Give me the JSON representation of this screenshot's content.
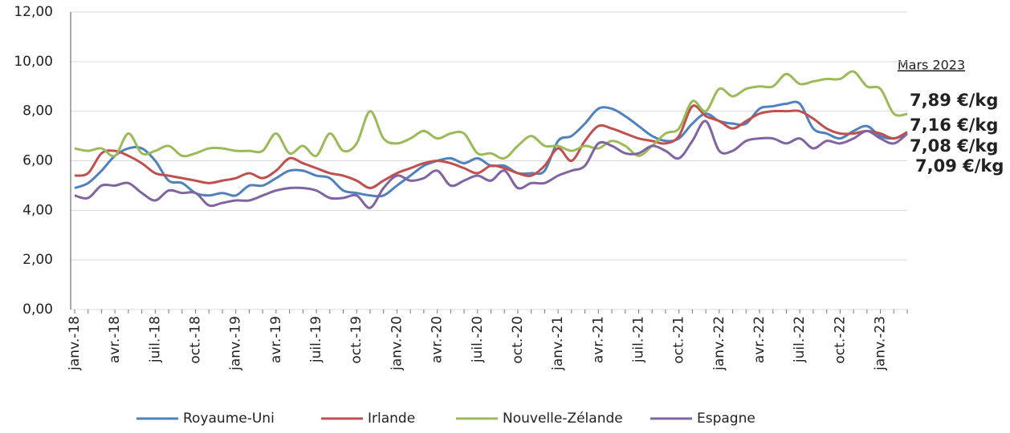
{
  "chart_data": {
    "type": "line",
    "categories": [
      "janv.-18",
      null,
      null,
      "avr.-18",
      null,
      null,
      "juil.-18",
      null,
      null,
      "oct.-18",
      null,
      null,
      "janv.-19",
      null,
      null,
      "avr.-19",
      null,
      null,
      "juil.-19",
      null,
      null,
      "oct.-19",
      null,
      null,
      "janv.-20",
      null,
      null,
      "avr.-20",
      null,
      null,
      "juil.-20",
      null,
      null,
      "oct.-20",
      null,
      null,
      "janv.-21",
      null,
      null,
      "avr.-21",
      null,
      null,
      "juil.-21",
      null,
      null,
      "oct.-21",
      null,
      null,
      "janv.-22",
      null,
      null,
      "avr.-22",
      null,
      null,
      "juil.-22",
      null,
      null,
      "oct.-22",
      null,
      null,
      "janv.-23",
      null,
      null
    ],
    "annotation": "Mars 2023",
    "ylim": [
      0,
      12
    ],
    "yticks": [
      {
        "value": 0,
        "label": "0,00"
      },
      {
        "value": 2,
        "label": "2,00"
      },
      {
        "value": 4,
        "label": "4,00"
      },
      {
        "value": 6,
        "label": "6,00"
      },
      {
        "value": 8,
        "label": "8,00"
      },
      {
        "value": 10,
        "label": "10,00"
      },
      {
        "value": 12,
        "label": "12,00"
      }
    ],
    "grid": true,
    "legend": "bottom",
    "series": [
      {
        "name": "Royaume-Uni",
        "color": "#4f81bd",
        "label_color": "#1f72c0",
        "values": [
          4.9,
          5.1,
          5.6,
          6.2,
          6.5,
          6.5,
          6.0,
          5.2,
          5.1,
          4.7,
          4.6,
          4.7,
          4.6,
          5.0,
          5.0,
          5.3,
          5.6,
          5.6,
          5.4,
          5.3,
          4.8,
          4.7,
          4.6,
          4.6,
          5.0,
          5.4,
          5.8,
          6.0,
          6.1,
          5.9,
          6.1,
          5.8,
          5.8,
          5.5,
          5.5,
          5.6,
          6.8,
          7.0,
          7.5,
          8.1,
          8.1,
          7.8,
          7.4,
          7.0,
          6.8,
          6.9,
          7.5,
          7.9,
          7.6,
          7.5,
          7.5,
          8.1,
          8.2,
          8.3,
          8.3,
          7.3,
          7.1,
          6.9,
          7.2,
          7.4,
          7.0,
          6.9,
          7.08
        ],
        "value_labels": [
          null,
          null,
          null,
          null,
          null,
          null,
          null,
          null,
          null,
          null,
          null,
          null,
          null,
          null,
          null,
          null,
          null,
          null,
          null,
          null,
          null,
          null,
          null,
          null,
          null,
          null,
          null,
          null,
          null,
          null,
          null,
          null,
          null,
          null,
          null,
          null,
          null,
          null,
          null,
          null,
          null,
          null,
          null,
          null,
          null,
          null,
          null,
          null,
          null,
          null,
          null,
          null,
          null,
          null,
          null,
          null,
          null,
          null,
          null,
          null,
          null,
          null,
          "7,08 €/kg"
        ]
      },
      {
        "name": "Irlande",
        "color": "#c0504d",
        "label_color": "#c0392b",
        "values": [
          5.4,
          5.5,
          6.3,
          6.4,
          6.2,
          5.9,
          5.5,
          5.4,
          5.3,
          5.2,
          5.1,
          5.2,
          5.3,
          5.5,
          5.3,
          5.6,
          6.1,
          5.9,
          5.7,
          5.5,
          5.4,
          5.2,
          4.9,
          5.2,
          5.5,
          5.7,
          5.9,
          6.0,
          5.9,
          5.7,
          5.5,
          5.8,
          5.7,
          5.5,
          5.4,
          5.8,
          6.5,
          6.0,
          6.8,
          7.4,
          7.3,
          7.1,
          6.9,
          6.8,
          6.7,
          7.0,
          8.2,
          7.8,
          7.6,
          7.3,
          7.6,
          7.9,
          8.0,
          8.0,
          8.0,
          7.7,
          7.3,
          7.1,
          7.1,
          7.2,
          7.1,
          6.9,
          7.16
        ],
        "value_labels": [
          null,
          null,
          null,
          null,
          null,
          null,
          null,
          null,
          null,
          null,
          null,
          null,
          null,
          null,
          null,
          null,
          null,
          null,
          null,
          null,
          null,
          null,
          null,
          null,
          null,
          null,
          null,
          null,
          null,
          null,
          null,
          null,
          null,
          null,
          null,
          null,
          null,
          null,
          null,
          null,
          null,
          null,
          null,
          null,
          null,
          null,
          null,
          null,
          null,
          null,
          null,
          null,
          null,
          null,
          null,
          null,
          null,
          null,
          null,
          null,
          null,
          null,
          "7,16 €/kg"
        ]
      },
      {
        "name": "Nouvelle-Zélande",
        "color": "#9bbb59",
        "label_color": "#7dbb3a",
        "values": [
          6.5,
          6.4,
          6.5,
          6.2,
          7.1,
          6.3,
          6.4,
          6.6,
          6.2,
          6.3,
          6.5,
          6.5,
          6.4,
          6.4,
          6.4,
          7.1,
          6.3,
          6.6,
          6.2,
          7.1,
          6.4,
          6.7,
          8.0,
          6.9,
          6.7,
          6.9,
          7.2,
          6.9,
          7.1,
          7.1,
          6.3,
          6.3,
          6.1,
          6.6,
          7.0,
          6.6,
          6.6,
          6.4,
          6.6,
          6.5,
          6.8,
          6.6,
          6.2,
          6.6,
          7.1,
          7.3,
          8.4,
          8.0,
          8.9,
          8.6,
          8.9,
          9.0,
          9.0,
          9.5,
          9.1,
          9.2,
          9.3,
          9.3,
          9.6,
          9.0,
          8.9,
          7.9,
          7.89
        ],
        "value_labels": [
          null,
          null,
          null,
          null,
          null,
          null,
          null,
          null,
          null,
          null,
          null,
          null,
          null,
          null,
          null,
          null,
          null,
          null,
          null,
          null,
          null,
          null,
          null,
          null,
          null,
          null,
          null,
          null,
          null,
          null,
          null,
          null,
          null,
          null,
          null,
          null,
          null,
          null,
          null,
          null,
          null,
          null,
          null,
          null,
          null,
          null,
          null,
          null,
          null,
          null,
          null,
          null,
          null,
          null,
          null,
          null,
          null,
          null,
          null,
          null,
          null,
          null,
          "7,89 €/kg"
        ]
      },
      {
        "name": "Espagne",
        "color": "#8064a2",
        "label_color": "#7354c0",
        "values": [
          4.6,
          4.5,
          5.0,
          5.0,
          5.1,
          4.7,
          4.4,
          4.8,
          4.7,
          4.7,
          4.2,
          4.3,
          4.4,
          4.4,
          4.6,
          4.8,
          4.9,
          4.9,
          4.8,
          4.5,
          4.5,
          4.6,
          4.1,
          4.9,
          5.4,
          5.2,
          5.3,
          5.6,
          5.0,
          5.2,
          5.4,
          5.2,
          5.6,
          4.9,
          5.1,
          5.1,
          5.4,
          5.6,
          5.8,
          6.7,
          6.6,
          6.3,
          6.3,
          6.6,
          6.4,
          6.1,
          6.8,
          7.6,
          6.4,
          6.4,
          6.8,
          6.9,
          6.9,
          6.7,
          6.9,
          6.5,
          6.8,
          6.7,
          6.9,
          7.2,
          6.9,
          6.7,
          7.09
        ],
        "value_labels": [
          null,
          null,
          null,
          null,
          null,
          null,
          null,
          null,
          null,
          null,
          null,
          null,
          null,
          null,
          null,
          null,
          null,
          null,
          null,
          null,
          null,
          null,
          null,
          null,
          null,
          null,
          null,
          null,
          null,
          null,
          null,
          null,
          null,
          null,
          null,
          null,
          null,
          null,
          null,
          null,
          null,
          null,
          null,
          null,
          null,
          null,
          null,
          null,
          null,
          null,
          null,
          null,
          null,
          null,
          null,
          null,
          null,
          null,
          null,
          null,
          null,
          null,
          "7,09 €/kg"
        ]
      }
    ]
  }
}
